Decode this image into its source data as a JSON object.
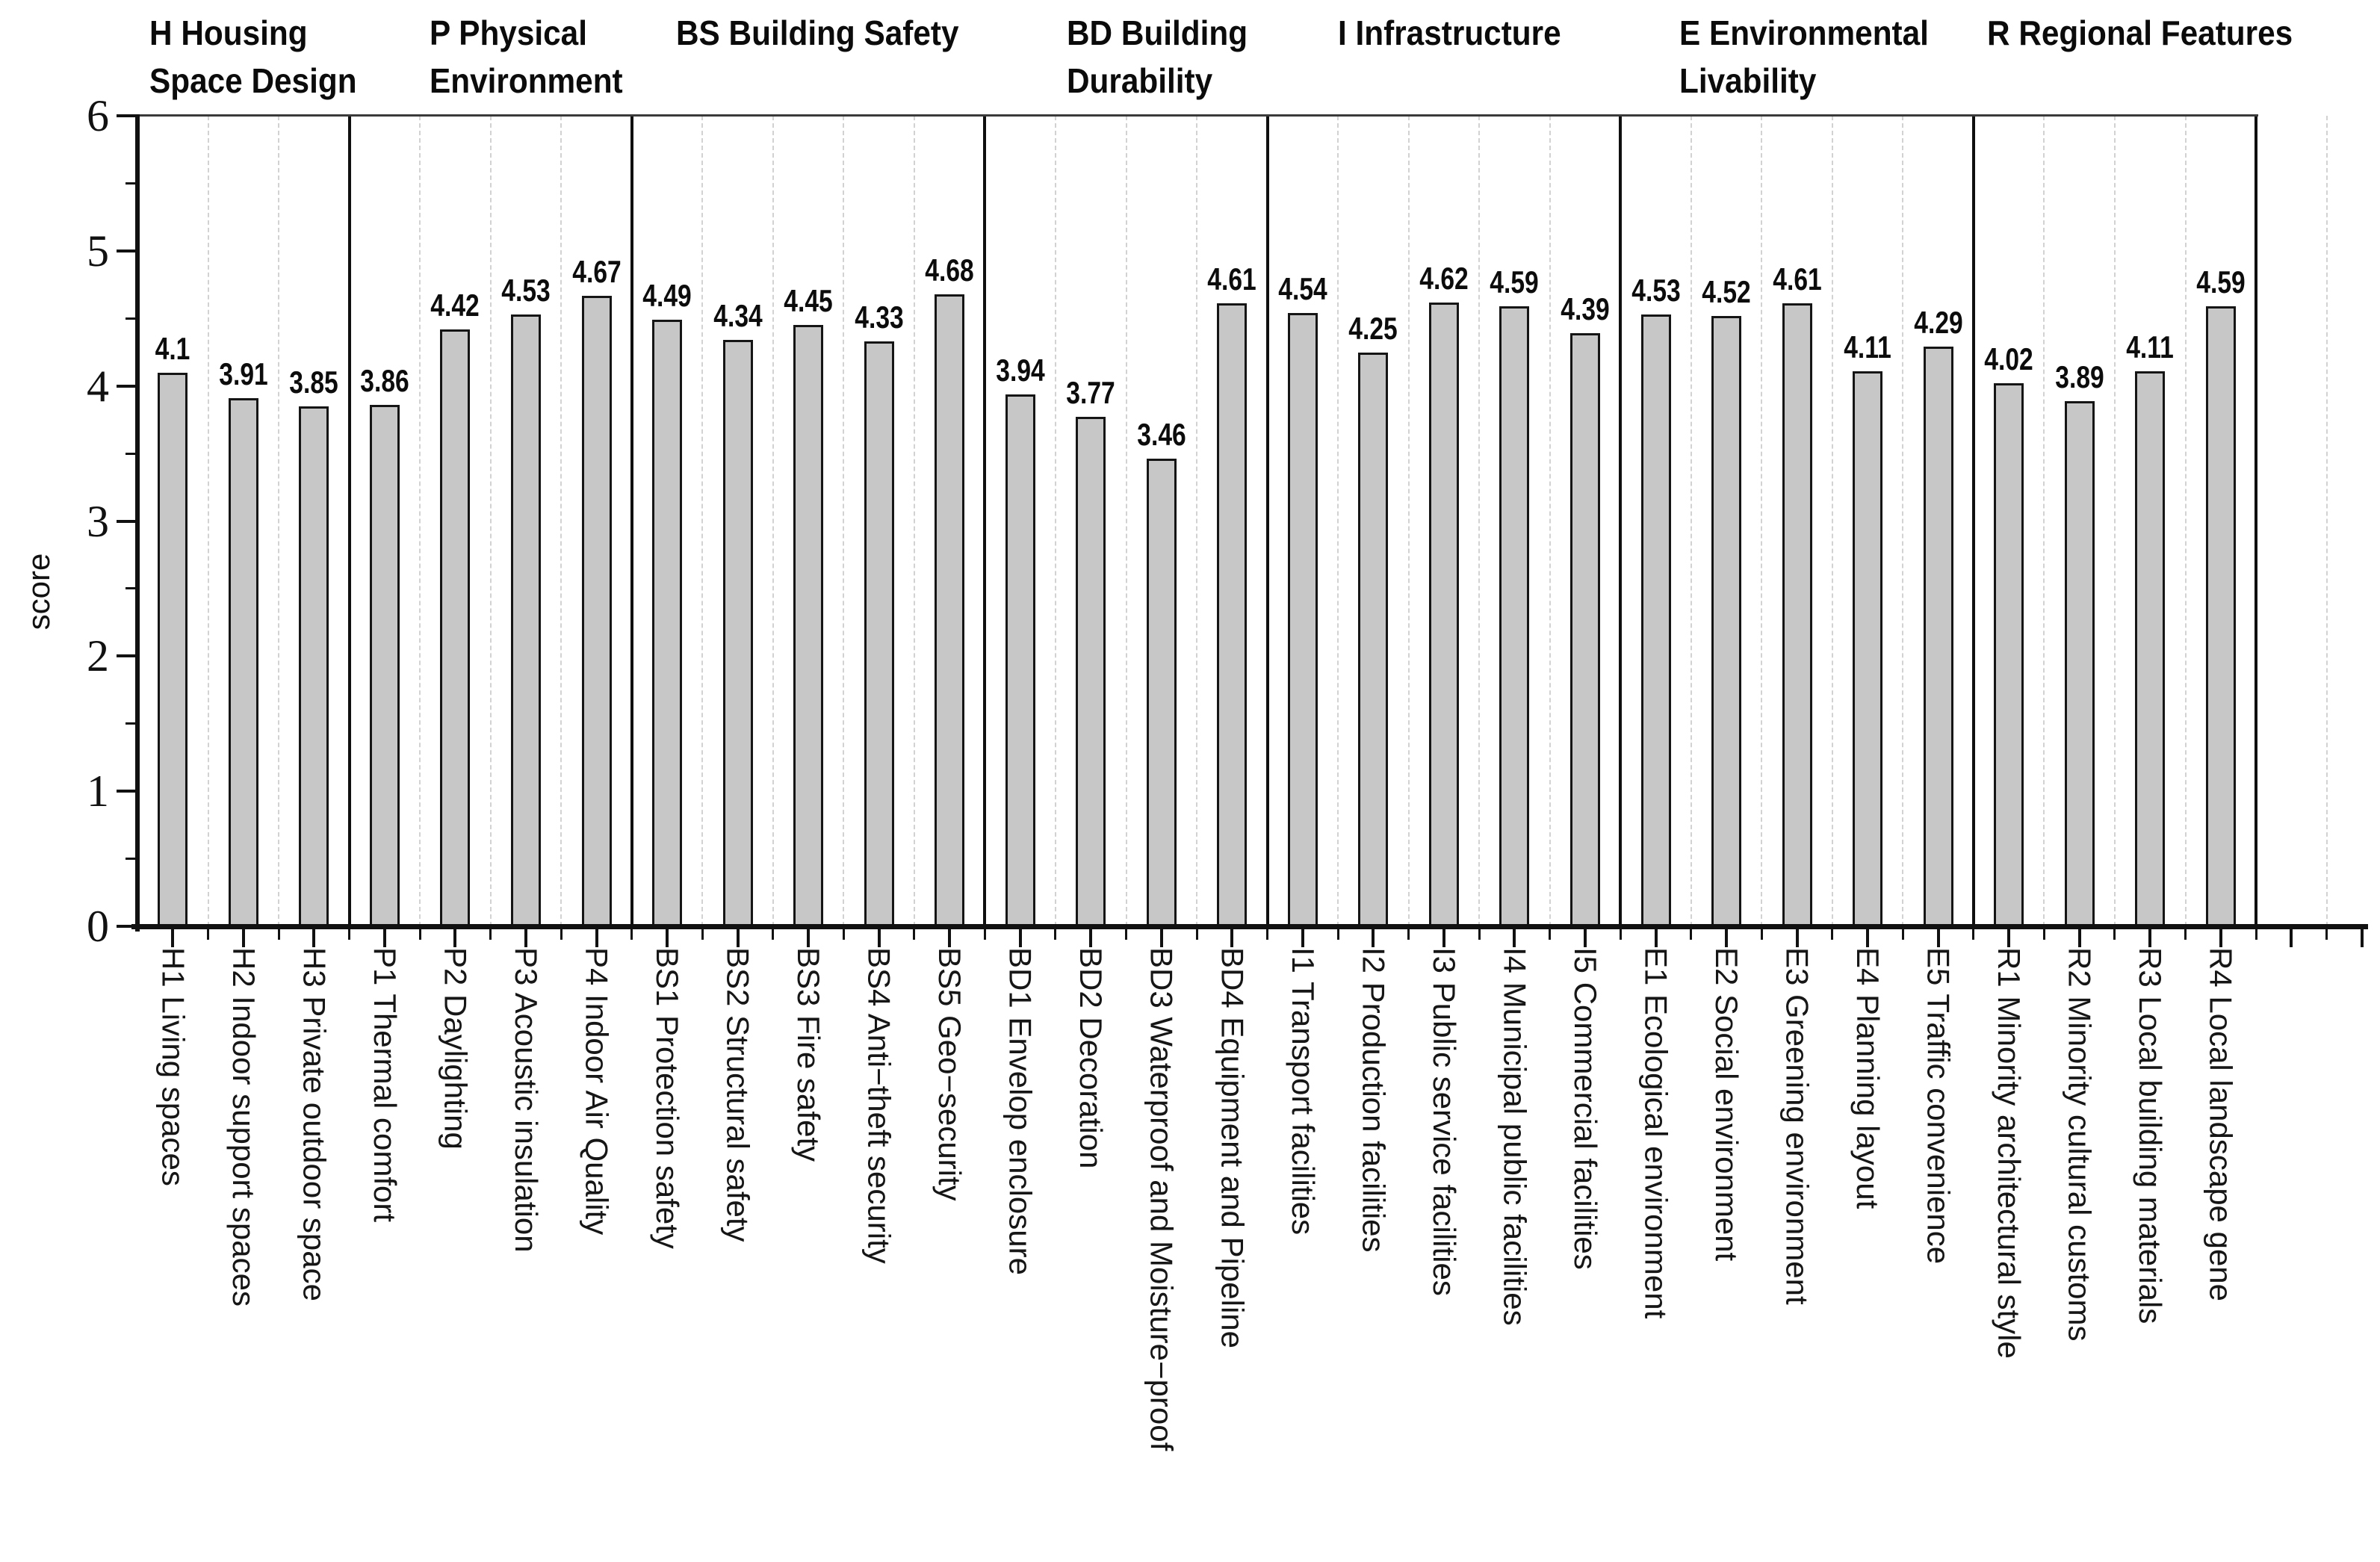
{
  "chart_data": {
    "type": "bar",
    "title": "",
    "xlabel": "",
    "ylabel": "score",
    "ylim": [
      0,
      6
    ],
    "y_major_ticks": [
      0,
      1,
      2,
      3,
      4,
      5,
      6
    ],
    "y_minor_tick_step": 0.5,
    "legend": "none",
    "grid": "dashed vertical separators between categories; solid vertical lines between groups",
    "bar_fill_color": "#c7c7c7",
    "bar_edge_color": "#151515",
    "value_label_color": "#0c0c0c",
    "groups": [
      {
        "name": "H Housing\nSpace Design",
        "categories": [
          "H1 Living spaces",
          "H2 Indoor support spaces",
          "H3 Private outdoor space"
        ],
        "values": [
          4.1,
          3.91,
          3.85
        ]
      },
      {
        "name": "P Physical\nEnvironment",
        "categories": [
          "P1 Thermal comfort",
          "P2 Daylighting",
          "P3 Acoustic insulation",
          "P4 Indoor Air Quality"
        ],
        "values": [
          3.86,
          4.42,
          4.53,
          4.67
        ]
      },
      {
        "name": "BS Building Safety",
        "categories": [
          "BS1 Protection safety",
          "BS2 Structural safety",
          "BS3 Fire safety",
          "BS4 Anti−theft security",
          "BS5 Geo−security"
        ],
        "values": [
          4.49,
          4.34,
          4.45,
          4.33,
          4.68
        ]
      },
      {
        "name": "BD Building\nDurability",
        "categories": [
          "BD1 Envelop enclosure",
          "BD2 Decoration",
          "BD3 Waterproof and Moisture−proof",
          "BD4 Equipment and Pipeline"
        ],
        "values": [
          3.94,
          3.77,
          3.46,
          4.61
        ]
      },
      {
        "name": "I Infrastructure",
        "categories": [
          "I1 Transport facilities",
          "I2 Production facilities",
          "I3 Public service facilities",
          "I4 Municipal public facilities",
          "I5 Commercial facilities"
        ],
        "values": [
          4.54,
          4.25,
          4.62,
          4.59,
          4.39
        ]
      },
      {
        "name": "E Environmental\nLivability",
        "categories": [
          "E1 Ecological environment",
          "E2 Social environment",
          "E3 Greening environment",
          "E4 Planning layout",
          "E5 Traffic convenience"
        ],
        "values": [
          4.53,
          4.52,
          4.61,
          4.11,
          4.29
        ]
      },
      {
        "name": "R Regional Features",
        "categories": [
          "R1 Minority architectural style",
          "R2 Minority cultural customs",
          "R3 Local building materials",
          "R4 Local landscape gene"
        ],
        "values": [
          4.02,
          3.89,
          4.11,
          4.59
        ]
      }
    ]
  }
}
